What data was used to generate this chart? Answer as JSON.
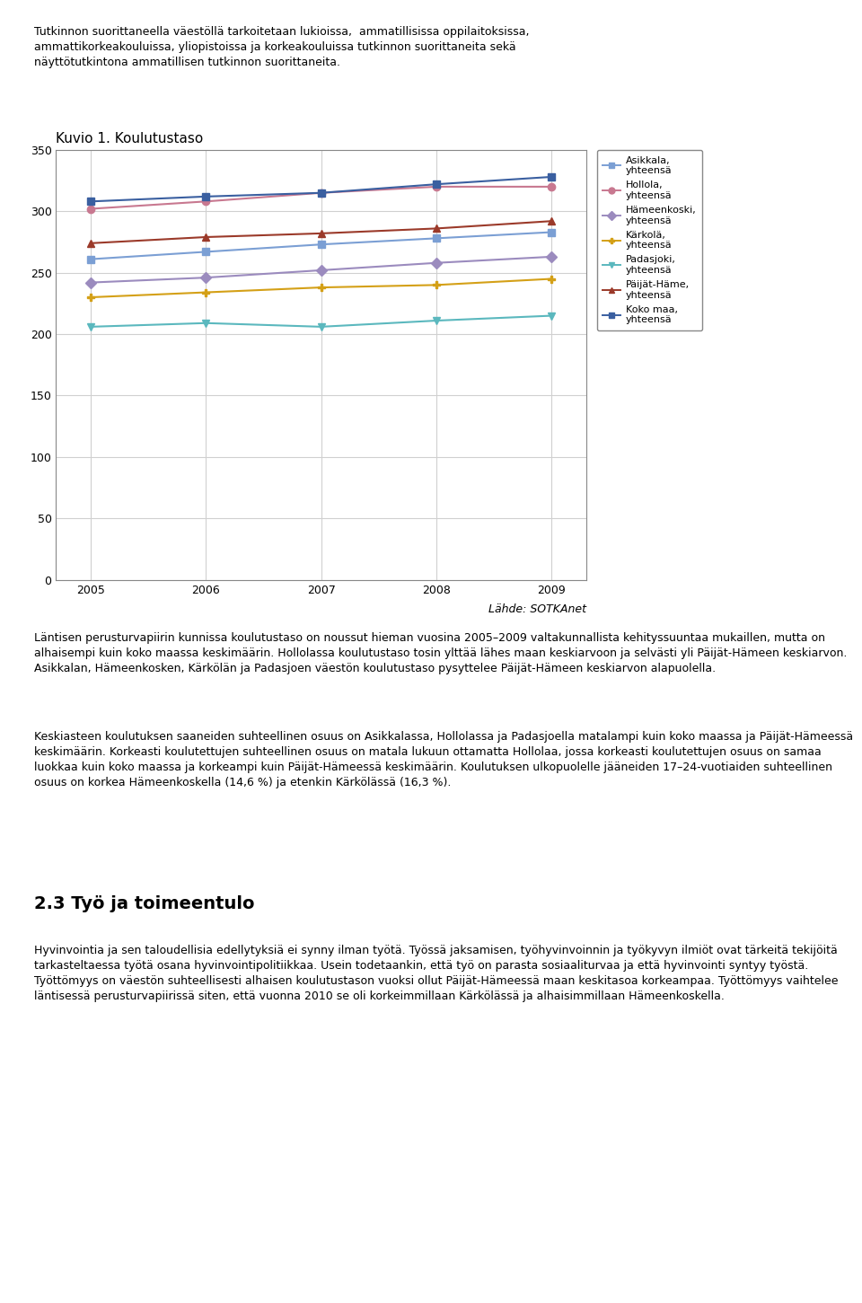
{
  "title": "Kuvio 1. Koulutustaso",
  "years": [
    2005,
    2006,
    2007,
    2008,
    2009
  ],
  "series": [
    {
      "label": "Asikkala,\nyhteensä",
      "values": [
        261,
        267,
        273,
        278,
        283
      ],
      "color": "#7B9FD4",
      "marker": "s",
      "linewidth": 1.5,
      "markersize": 6
    },
    {
      "label": "Hollola,\nyhteensä",
      "values": [
        302,
        308,
        315,
        320,
        320
      ],
      "color": "#C87890",
      "marker": "o",
      "linewidth": 1.5,
      "markersize": 6
    },
    {
      "label": "Hämeenkoski,\nyhteensä",
      "values": [
        242,
        246,
        252,
        258,
        263
      ],
      "color": "#9B8BBE",
      "marker": "D",
      "linewidth": 1.5,
      "markersize": 6
    },
    {
      "label": "Kärkolä,\nyhteensä",
      "values": [
        230,
        234,
        238,
        240,
        245
      ],
      "color": "#D4A017",
      "marker": "P",
      "linewidth": 1.5,
      "markersize": 6
    },
    {
      "label": "Padasjoki,\nyhteensä",
      "values": [
        206,
        209,
        206,
        211,
        215
      ],
      "color": "#5BB8BE",
      "marker": "v",
      "linewidth": 1.5,
      "markersize": 6
    },
    {
      "label": "Päijät-Häme,\nyhteensä",
      "values": [
        274,
        279,
        282,
        286,
        292
      ],
      "color": "#9B3A2A",
      "marker": "^",
      "linewidth": 1.5,
      "markersize": 6
    },
    {
      "label": "Koko maa,\nyhteensä",
      "values": [
        308,
        312,
        315,
        322,
        328
      ],
      "color": "#3A5FA0",
      "marker": "s",
      "linewidth": 1.5,
      "markersize": 6
    }
  ],
  "ylim": [
    0,
    350
  ],
  "yticks": [
    0,
    50,
    100,
    150,
    200,
    250,
    300,
    350
  ],
  "xlim": [
    2004.7,
    2009.3
  ],
  "xticks": [
    2005,
    2006,
    2007,
    2008,
    2009
  ],
  "grid_color": "#D0D0D0",
  "header_text": "Tutkinnon suorittaneella väestöllä tarkoitetaan lukioissa,  ammatillisissa oppilaitoksissa,\nammattikorkeakouluissa, yliopistoissa ja korkeakouluissa tutkinnon suorittaneita sekä\nnäyttötutkintona ammatillisen tutkinnon suorittaneita.",
  "source_text": "Lähde: SOTKAnet",
  "body_text_1": "Läntisen perusturvapiirin kunnissa koulutustaso on noussut hieman vuosina 2005–2009 valtakunnallista kehityssuuntaa mukaillen, mutta on alhaisempi kuin koko maassa keskimäärin. Hollolassa koulutustaso tosin ylttää lähes maan keskiarvoon ja selvästi yli Päijät-Hämeen keskiarvon. Asikkalan, Hämeenkosken, Kärkolän ja Padasjoen väestön koulutustaso pysyttelee Päijät-Hämeen keskiarvon alapuolella.",
  "body_text_2": "Keskiasteen koulutuksen saaneiden suhteellinen osuus on Asikkalassa, Hollolassa ja Padasjoella matalampi kuin koko maassa ja Päijät-Hämeessä keskimäärin. Korkeasti koulutettujen suhteellinen osuus on matala lukuun ottamatta Hollolaa, jossa korkeasti koulutettujen osuus on samaa luokkaa kuin koko maassa ja korkeampi kuin Päijät-Hämeessä keskimäärin. Koulutuksen ulkopuolelle jääneiden 17–24-vuotiaiden suhteellinen osuus on korkea Hämeenkoskella (14,6 %) ja etenkin Kärkolässä (16,3 %).",
  "section_header": "2.3 Työ ja toimeentulo",
  "section_body": "Hyvinvointia ja sen taloudellisia edellytyksiä ei synny ilman työtä. Työssä jaksamisen, työhyvinvoinnin ja työkyvyn ilmiöt ovat tärkeitä tekijöitä tarkasteltaessa työtä osana hyvinvointipolitiikkaa. Usein todetaankin, että työ on parasta sosiaaliturvaa ja että hyvinvointi syntyy työstä. Työttömyys on väestön suhteellisesti alhaisen koulutustason vuoksi ollut Päijät-Hämeessä maan keskitasoa korkeampaa. Työttömyys vaihtelee läntisessä perusturvapiirissä siten, että vuonna 2010 se oli korkeimmillaan Kärkkolässä ja alhaisimmillaan Hämeenkoskella.",
  "legend_fontsize": 8,
  "axis_fontsize": 9,
  "title_fontsize": 11,
  "body_fontsize": 9
}
